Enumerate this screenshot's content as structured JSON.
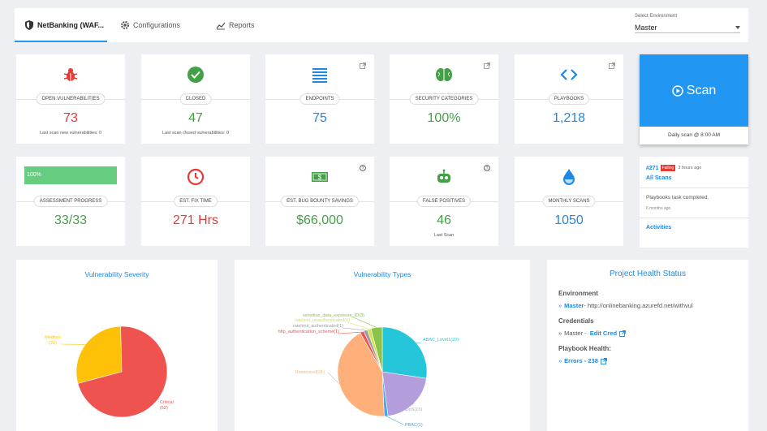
{
  "tabs": [
    {
      "label": "NetBanking (WAF..."
    },
    {
      "label": "Configurations"
    },
    {
      "label": "Reports"
    }
  ],
  "environment": {
    "label": "Select Environment",
    "value": "Master"
  },
  "cards": {
    "open_vulnerabilities": {
      "label": "OPEN VULNERABILITIES",
      "value": "73",
      "sub": "Last scan new vulnerabilities: 0"
    },
    "closed": {
      "label": "CLOSED",
      "value": "47",
      "sub": "Last scan closed vulnerabilities: 0"
    },
    "endpoints": {
      "label": "ENDPOINTS",
      "value": "75"
    },
    "security_categories": {
      "label": "SECURITY CATEGORIES",
      "value": "100%"
    },
    "playbooks": {
      "label": "PLAYBOOKS",
      "value": "1,218"
    },
    "assessment_progress": {
      "label": "ASSESSMENT PROGRESS",
      "value": "33/33",
      "progress_text": "100%",
      "progress_fraction": 1.0
    },
    "est_fix_time": {
      "label": "EST. FIX TIME",
      "value": "271 Hrs"
    },
    "bug_bounty": {
      "label": "EST. BUG BOUNTY SAVINGS",
      "value": "$66,000"
    },
    "false_positives": {
      "label": "FALSE POSITIVES",
      "value": "46",
      "sub": "Last Scan"
    },
    "monthly_scans": {
      "label": "MONTHLY SCANS",
      "value": "1050"
    }
  },
  "scan": {
    "label": "Scan",
    "footer": "Daily scan @ 8:00 AM"
  },
  "activity": {
    "number": "#271",
    "badge": "Failing",
    "time": "3 hours ago",
    "all_scans": "All Scans",
    "message": "Playbooks task completed.",
    "message_time": "6 months ago",
    "activities_link": "Activities"
  },
  "panels": {
    "severity_title": "Vulnerability Severity",
    "types_title": "Vulnerability Types",
    "health_title": "Project Health Status"
  },
  "health": {
    "environment_label": "Environment",
    "environment_name": "Master",
    "environment_url": " - http://onlinebanking.azurefd.net/withvul",
    "credentials_label": "Credentials",
    "credentials_name": "Master -",
    "edit_cred": "Edit Cred",
    "playbook_label": "Playbook Health:",
    "errors": "Errors - 238"
  },
  "colors": {
    "accent": "#2196f3",
    "red": "#e53935",
    "green": "#43a047",
    "blue": "#1e88e5"
  },
  "chart_data": [
    {
      "type": "pie",
      "title": "Vulnerability Severity",
      "categories": [
        "Medium",
        "Critical"
      ],
      "values": [
        21,
        52
      ],
      "labels": [
        "Medium\n(21)",
        "Critical\n(52)"
      ],
      "colors": [
        "#ffc107",
        "#ef5350"
      ]
    },
    {
      "type": "pie",
      "title": "Vulnerability Types",
      "categories": [
        "ABAC_Level1",
        "ADoS",
        "PBAC",
        "Unsecured",
        "http_authentication_scheme",
        "ratelimit_authenticated",
        "ratelimit_unauthenticated",
        "sensitive_data_exposure_ID3"
      ],
      "values": [
        20,
        15,
        1,
        31,
        1,
        1,
        1,
        3
      ],
      "labels": [
        "ABAC_Level1(20)",
        "ADoS(15)",
        "PBAC(1)",
        "Unsecured(31)",
        "http_authentication_scheme(1)",
        "ratelimit_authenticated(1)",
        "ratelimit_unauthenticated(1)",
        "sensitive_data_exposure_ID(3)"
      ],
      "colors": [
        "#26c6da",
        "#b39ddb",
        "#42a5f5",
        "#ffb07a",
        "#ef5350",
        "#9e9e9e",
        "#d4e157",
        "#8bc34a"
      ]
    }
  ]
}
